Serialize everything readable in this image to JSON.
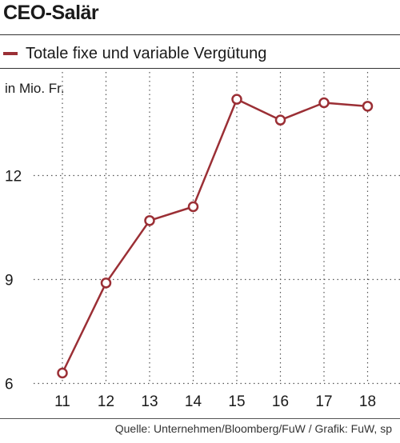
{
  "title": "CEO-Salär",
  "source": "Quelle: Unternehmen/Bloomberg/FuW / Grafik: FuW, sp",
  "chart_data": {
    "type": "line",
    "title": "CEO-Salär",
    "ylabel": "in Mio. Fr.",
    "xlabel": "",
    "categories": [
      "11",
      "12",
      "13",
      "14",
      "15",
      "16",
      "17",
      "18"
    ],
    "series": [
      {
        "name": "Totale fixe und variable Vergütung",
        "color": "#9b2f35",
        "values": [
          6.3,
          8.9,
          10.7,
          11.1,
          14.2,
          13.6,
          14.1,
          14.0
        ]
      }
    ],
    "yticks": [
      6,
      9,
      12
    ],
    "ylim": [
      6,
      15
    ],
    "grid": true,
    "marker": "open-circle",
    "legend": "top-left"
  }
}
